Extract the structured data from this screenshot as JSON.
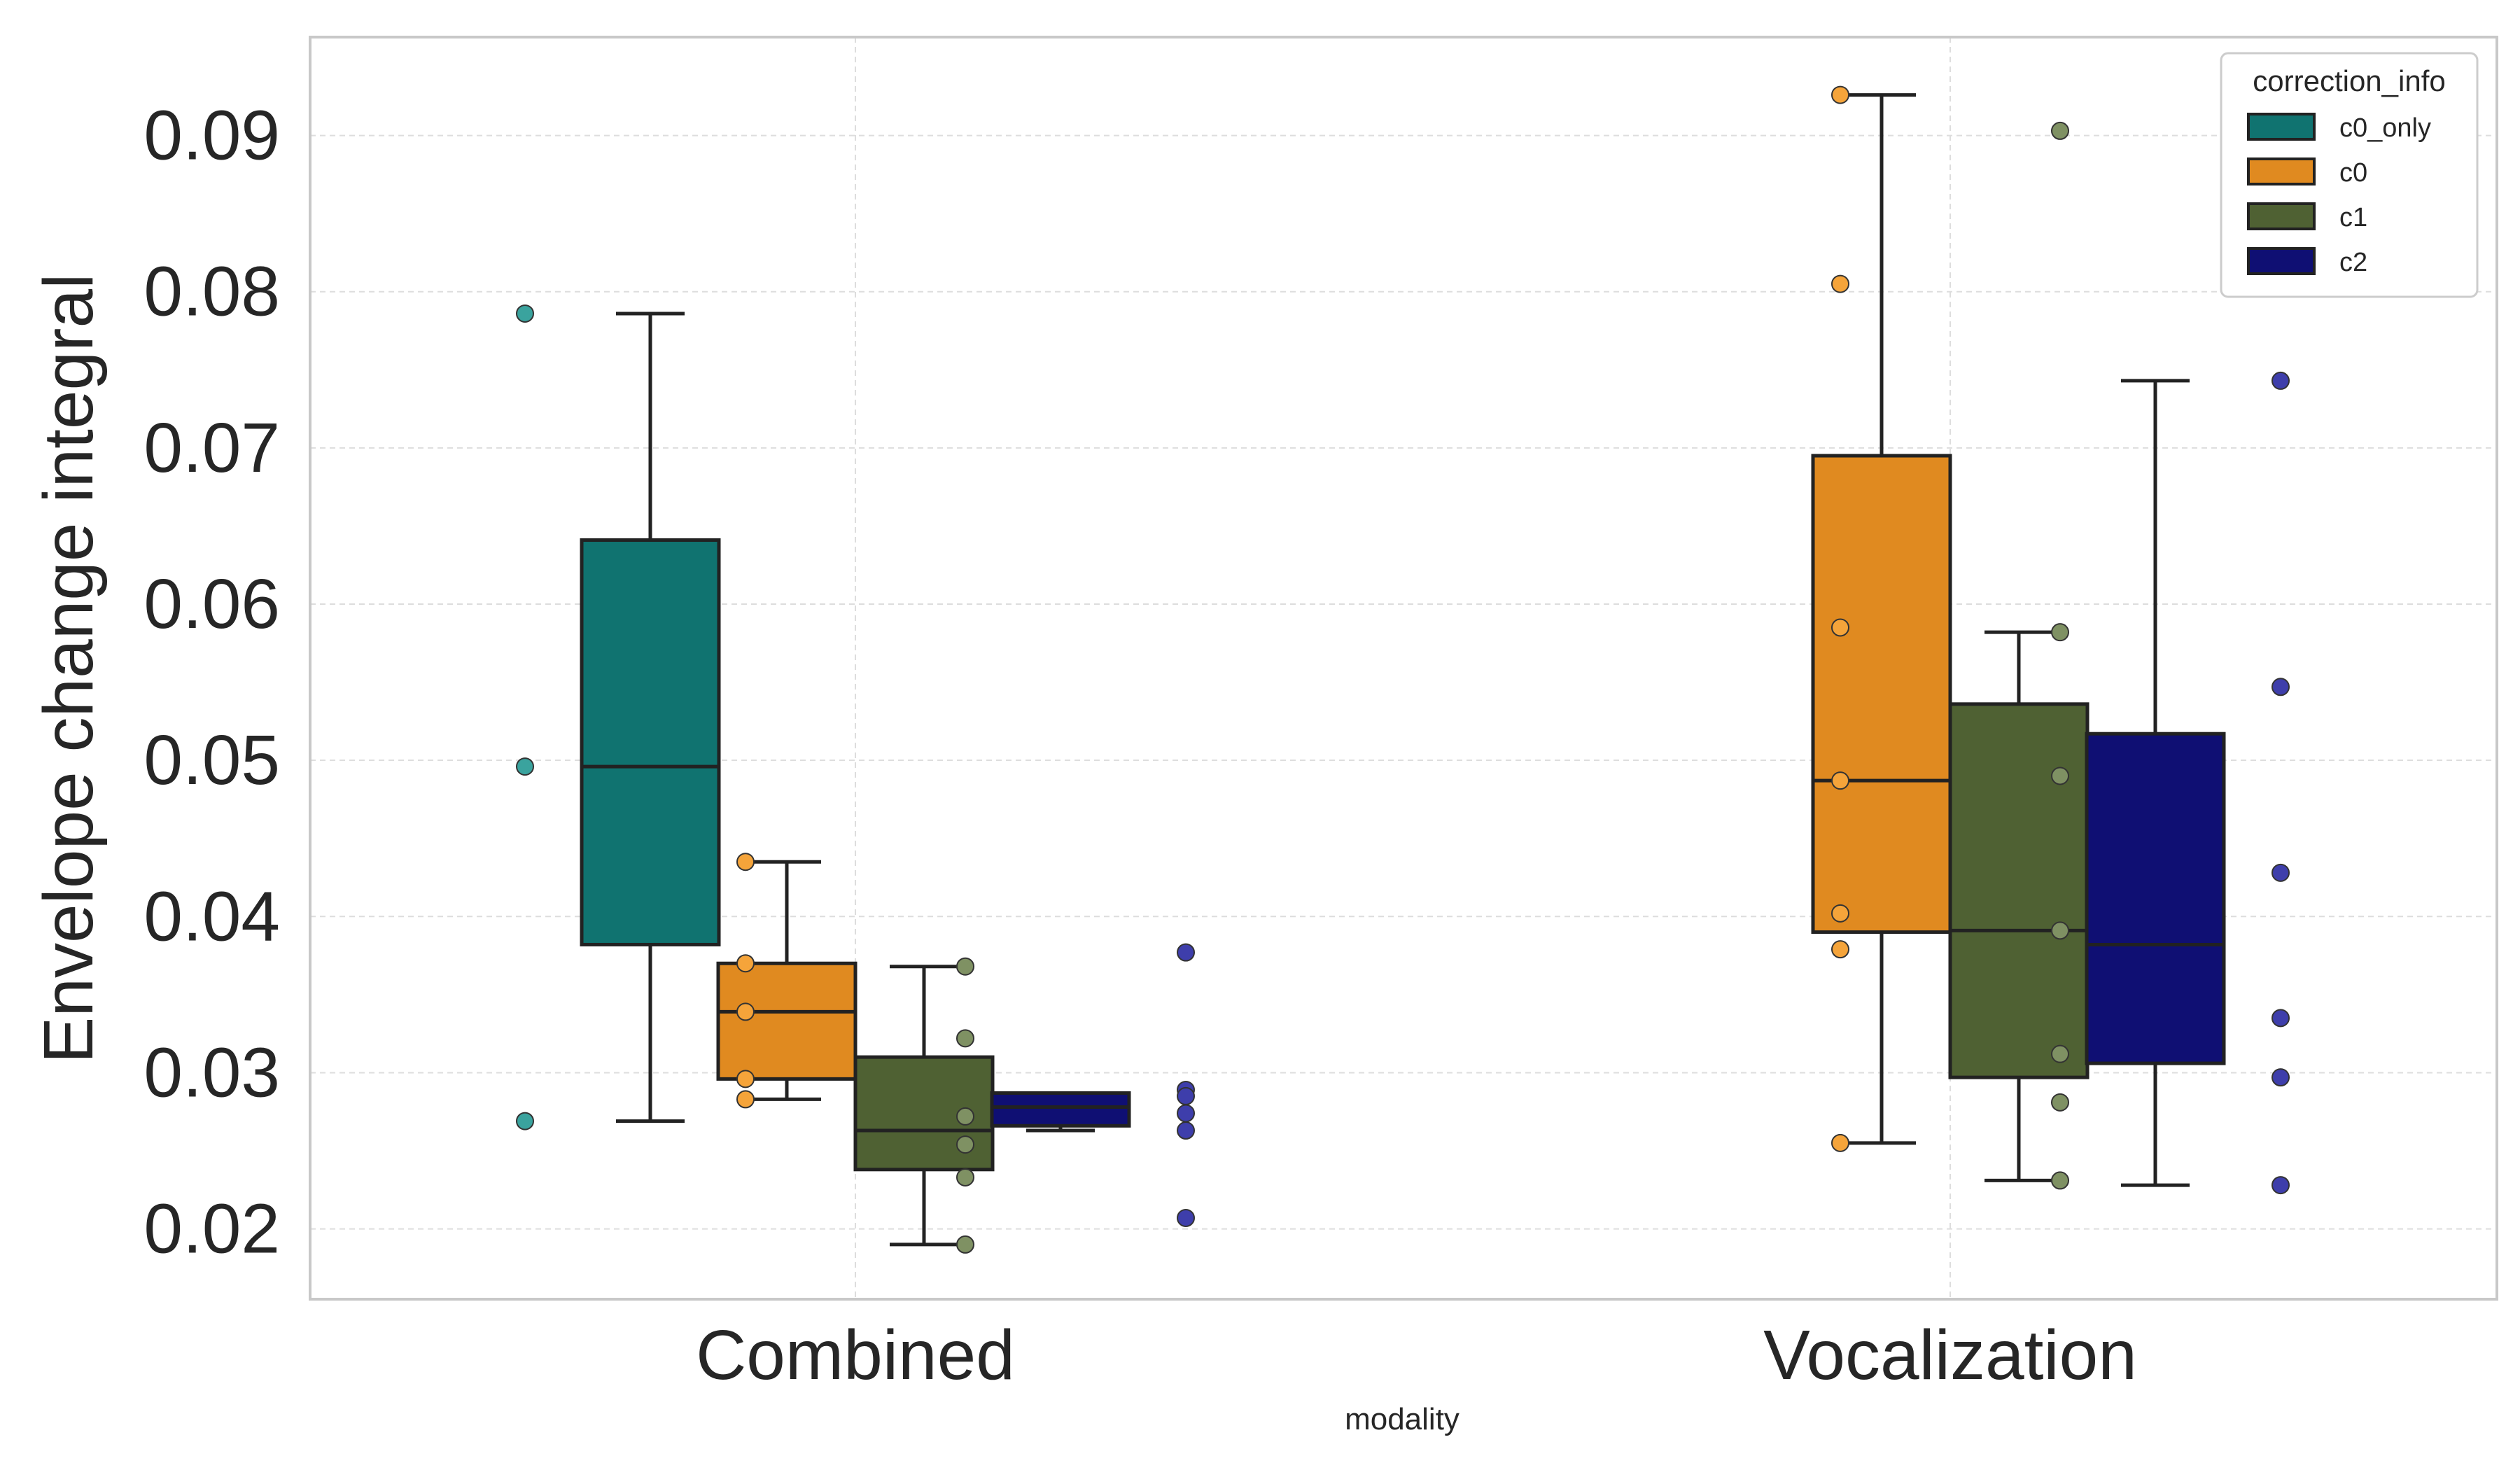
{
  "chart_data": {
    "type": "box",
    "xlabel": "modality",
    "ylabel": "Envelope change integral",
    "ylim": [
      0.0155,
      0.0963
    ],
    "yticks": [
      0.02,
      0.03,
      0.04,
      0.05,
      0.06,
      0.07,
      0.08,
      0.09
    ],
    "ytick_labels": [
      "0.02",
      "0.03",
      "0.04",
      "0.05",
      "0.06",
      "0.07",
      "0.08",
      "0.09"
    ],
    "categories": [
      "Combined",
      "Vocalization"
    ],
    "grid": true,
    "legend": {
      "title": "correction_info",
      "placement": "top-right"
    },
    "series": [
      {
        "name": "c0_only",
        "color": "#107370",
        "point_color": "#3aa39e",
        "boxes": [
          {
            "category": "Combined",
            "whisker_low": 0.0269,
            "q1": 0.0382,
            "median": 0.0496,
            "q3": 0.0641,
            "whisker_high": 0.0786,
            "points": [
              0.0786,
              0.0496,
              0.0269
            ]
          },
          null
        ]
      },
      {
        "name": "c0",
        "color": "#e08a20",
        "point_color": "#f5a43a",
        "boxes": [
          {
            "category": "Combined",
            "whisker_low": 0.0283,
            "q1": 0.0296,
            "median": 0.0339,
            "q3": 0.037,
            "whisker_high": 0.0435,
            "points": [
              0.0435,
              0.037,
              0.0339,
              0.0296,
              0.0283
            ]
          },
          {
            "category": "Vocalization",
            "whisker_low": 0.0255,
            "q1": 0.039,
            "median": 0.0487,
            "q3": 0.0695,
            "whisker_high": 0.0926,
            "points": [
              0.0926,
              0.0805,
              0.0585,
              0.0487,
              0.0402,
              0.0379,
              0.0255
            ]
          }
        ]
      },
      {
        "name": "c1",
        "color": "#4f6133",
        "point_color": "#7f9163",
        "boxes": [
          {
            "category": "Combined",
            "whisker_low": 0.019,
            "q1": 0.0238,
            "median": 0.0263,
            "q3": 0.031,
            "whisker_high": 0.0368,
            "points": [
              0.0368,
              0.0322,
              0.0272,
              0.0254,
              0.0233,
              0.019
            ]
          },
          {
            "category": "Vocalization",
            "whisker_low": 0.0231,
            "q1": 0.0297,
            "median": 0.0391,
            "q3": 0.0536,
            "whisker_high": 0.0582,
            "points": [
              0.0903,
              0.0582,
              0.049,
              0.0391,
              0.0312,
              0.0281,
              0.0231
            ]
          }
        ]
      },
      {
        "name": "c2",
        "color": "#0f0f73",
        "point_color": "#3e3eab",
        "boxes": [
          {
            "category": "Combined",
            "whisker_low": 0.0263,
            "q1": 0.0266,
            "median": 0.0278,
            "q3": 0.0287,
            "whisker_high": 0.0287,
            "points": [
              0.0377,
              0.0289,
              0.0285,
              0.0274,
              0.0263,
              0.0207
            ]
          },
          {
            "category": "Vocalization",
            "whisker_low": 0.0228,
            "q1": 0.0306,
            "median": 0.0382,
            "q3": 0.0517,
            "whisker_high": 0.0743,
            "points": [
              0.0743,
              0.0547,
              0.0428,
              0.0335,
              0.0297,
              0.0228
            ]
          }
        ]
      }
    ]
  }
}
